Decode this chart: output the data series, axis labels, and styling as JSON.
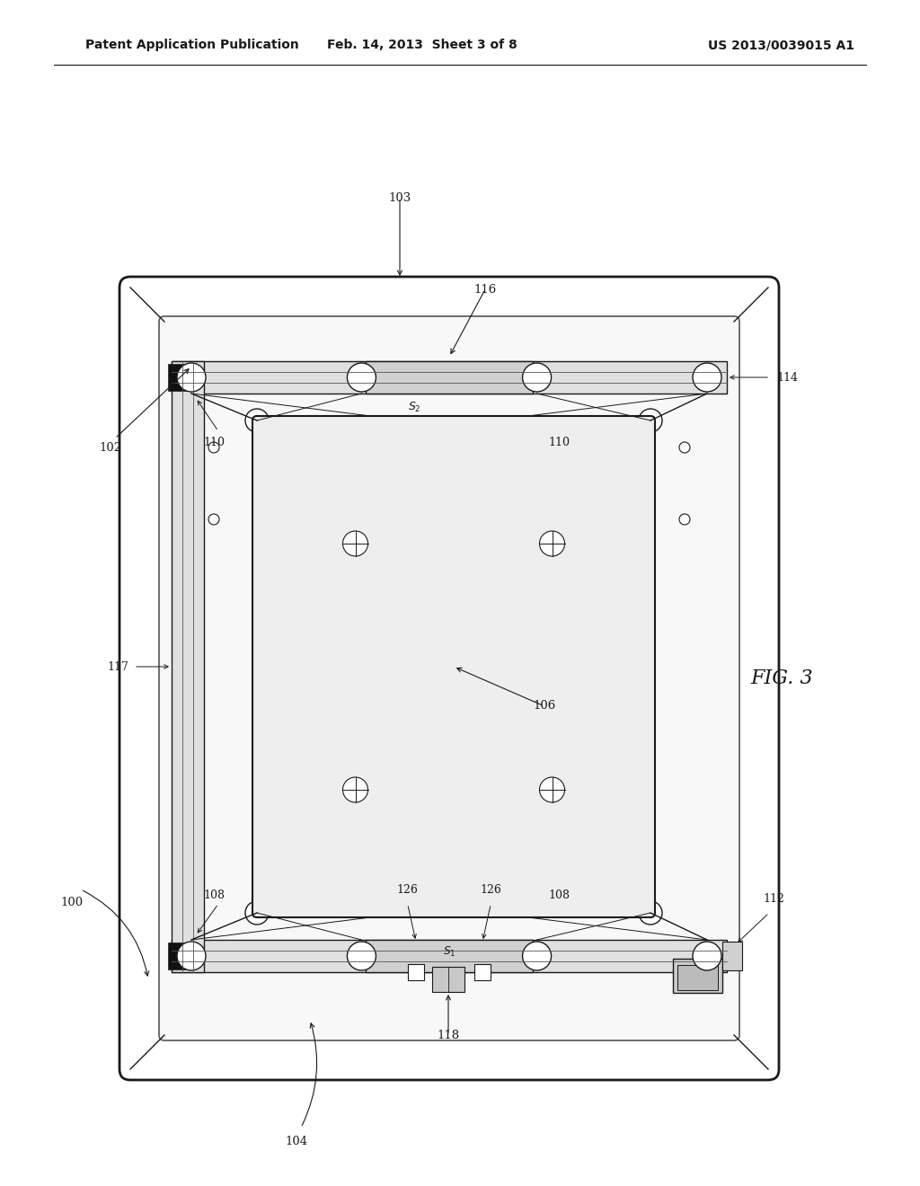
{
  "background_color": "#ffffff",
  "header_left": "Patent Application Publication",
  "header_center": "Feb. 14, 2013  Sheet 3 of 8",
  "header_right": "US 2013/0039015 A1",
  "fig_label": "FIG. 3"
}
